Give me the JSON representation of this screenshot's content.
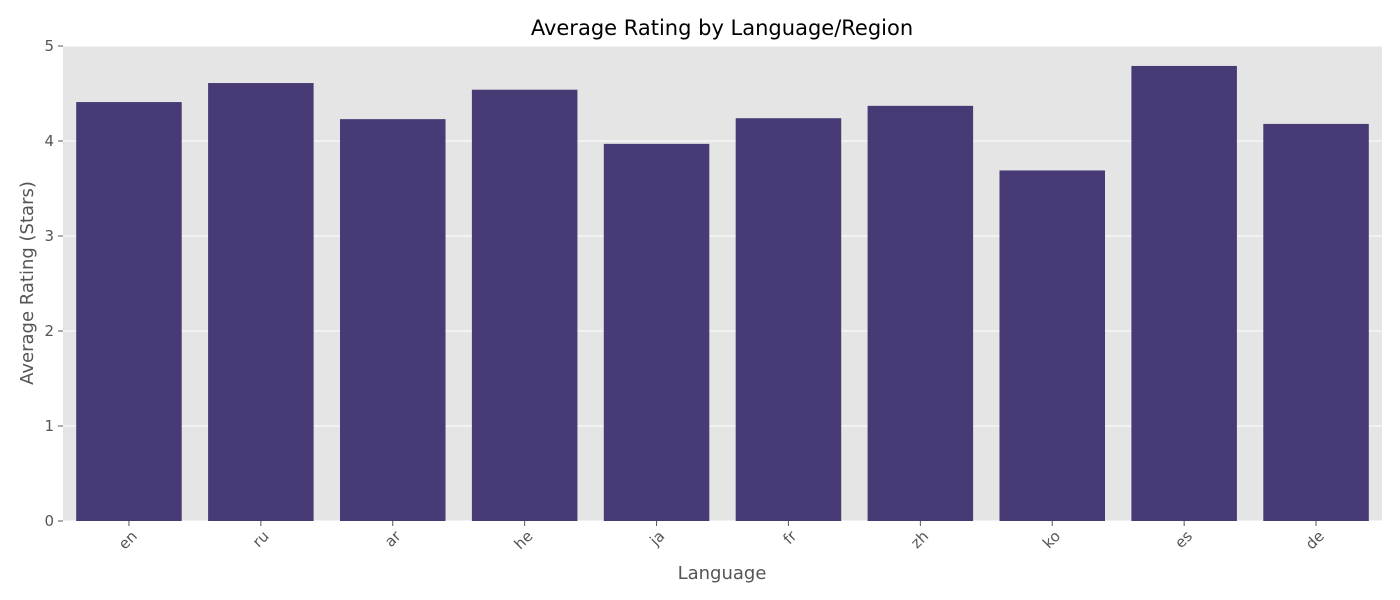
{
  "chart_data": {
    "type": "bar",
    "title": "Average Rating by Language/Region",
    "xlabel": "Language",
    "ylabel": "Average Rating (Stars)",
    "categories": [
      "en",
      "ru",
      "ar",
      "he",
      "ja",
      "fr",
      "zh",
      "ko",
      "es",
      "de"
    ],
    "values": [
      4.41,
      4.61,
      4.23,
      4.54,
      3.97,
      4.24,
      4.37,
      3.69,
      4.79,
      4.18
    ],
    "ylim": [
      0,
      5
    ],
    "yticks": [
      0,
      1,
      2,
      3,
      4,
      5
    ],
    "grid": true,
    "legend": "none",
    "colors": {
      "bar": "#483a75",
      "plot_background": "#e5e5e5",
      "grid": "#ffffff"
    }
  }
}
